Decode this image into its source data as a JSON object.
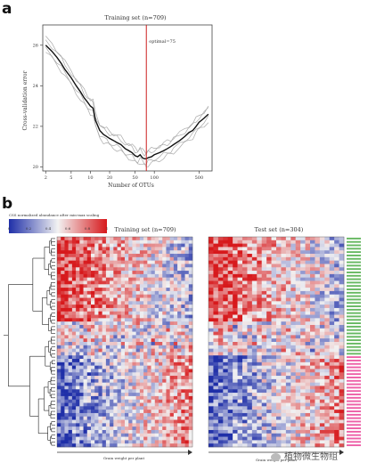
{
  "panel_a": {
    "letter": "a",
    "chart_data": {
      "type": "line",
      "title": "Training set (n=709)",
      "xlabel": "Number of OTUs",
      "ylabel": "Cross-validation error",
      "x_scale": "log",
      "xlim": [
        1.8,
        800
      ],
      "ylim": [
        19.8,
        27
      ],
      "x_ticks": [
        2,
        5,
        10,
        20,
        50,
        100,
        500
      ],
      "y_ticks": [
        20,
        22,
        24,
        26
      ],
      "annotation": {
        "label": "optimal=75",
        "x": 75,
        "color": "#cc1f1f"
      },
      "series": [
        {
          "x": [
            2,
            2.5,
            3,
            3.5,
            4,
            5,
            6,
            7,
            8,
            9,
            10,
            11,
            12,
            14,
            16,
            18,
            20,
            23,
            26,
            30,
            35,
            40,
            45,
            50,
            55,
            60,
            65,
            70,
            75,
            80,
            90,
            100,
            120,
            140,
            160,
            180,
            200,
            250,
            300,
            350,
            400,
            450,
            500,
            600,
            700
          ],
          "y": [
            26.0,
            25.7,
            25.4,
            25.1,
            24.8,
            24.4,
            24.0,
            23.7,
            23.4,
            23.2,
            23.0,
            22.9,
            22.3,
            21.8,
            21.6,
            21.5,
            21.4,
            21.3,
            21.2,
            21.1,
            20.9,
            20.8,
            20.7,
            20.55,
            20.5,
            20.6,
            20.45,
            20.4,
            20.4,
            20.45,
            20.5,
            20.6,
            20.7,
            20.8,
            20.9,
            21.0,
            21.1,
            21.3,
            21.5,
            21.7,
            21.8,
            22.0,
            22.2,
            22.4,
            22.6
          ]
        }
      ]
    }
  },
  "panel_b": {
    "letter": "b",
    "colorbar": {
      "title": "CSS normalized abundance after min-max scaling",
      "ticks": [
        "0",
        "0.2",
        "0.4",
        "0.6",
        "0.8",
        "1"
      ]
    },
    "heatmaps": [
      {
        "title": "Training set (n=709)",
        "xlabel": "Grain weight per plant"
      },
      {
        "title": "Test set (n=304)",
        "xlabel": "Grain weight per plant"
      }
    ],
    "row_label_colors": [
      "#33a02c",
      "#e7298a"
    ]
  },
  "watermark": {
    "text": "植物微生物组"
  }
}
